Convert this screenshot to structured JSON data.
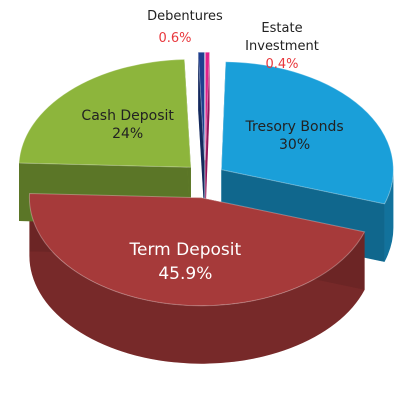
{
  "chart_data": {
    "type": "pie3d",
    "categories": [
      "Estate Investment",
      "Tresory Bonds",
      "Term Deposit",
      "Cash Deposit",
      "Debentures"
    ],
    "values": [
      0.4,
      30,
      45.9,
      24,
      0.6
    ],
    "value_labels": [
      "0.4%",
      "30%",
      "45.9%",
      "24%",
      "0.6%"
    ],
    "colors": [
      "#e0218a",
      "#1a9fd9",
      "#a63a3a",
      "#8db53c",
      "#1f3f8f"
    ]
  }
}
